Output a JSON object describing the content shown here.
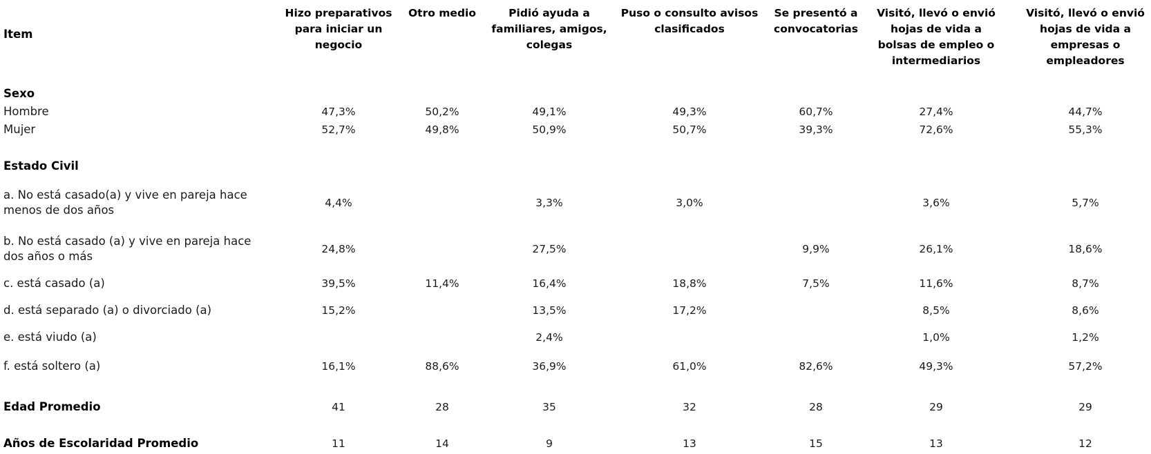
{
  "header": {
    "item_label": "Item",
    "columns": [
      "Hizo preparativos para iniciar un negocio",
      "Otro medio",
      "Pidió ayuda a familiares, amigos, colegas",
      "Puso o consulto avisos clasificados",
      "Se presentó a convocatorias",
      "Visitó, llevó o envió hojas de vida a bolsas de empleo o intermediarios",
      "Visitó, llevó o envió hojas de vida a empresas o empleadores"
    ]
  },
  "rows": [
    {
      "label": "Sexo",
      "bold": true,
      "values": [
        "",
        "",
        "",
        "",
        "",
        "",
        ""
      ]
    },
    {
      "label": "Hombre",
      "bold": false,
      "values": [
        "47,3%",
        "50,2%",
        "49,1%",
        "49,3%",
        "60,7%",
        "27,4%",
        "44,7%"
      ]
    },
    {
      "label": "Mujer",
      "bold": false,
      "values": [
        "52,7%",
        "49,8%",
        "50,9%",
        "50,7%",
        "39,3%",
        "72,6%",
        "55,3%"
      ]
    },
    {
      "label": "Estado Civil",
      "bold": true,
      "values": [
        "",
        "",
        "",
        "",
        "",
        "",
        ""
      ]
    },
    {
      "label": "a. No está casado(a) y vive en pareja hace menos de dos años",
      "bold": false,
      "values": [
        "4,4%",
        "",
        "3,3%",
        "3,0%",
        "",
        "3,6%",
        "5,7%"
      ]
    },
    {
      "label": "b. No está casado (a) y vive en pareja hace dos años o más",
      "bold": false,
      "values": [
        "24,8%",
        "",
        "27,5%",
        "",
        "9,9%",
        "26,1%",
        "18,6%"
      ]
    },
    {
      "label": "c. está casado (a)",
      "bold": false,
      "values": [
        "39,5%",
        "11,4%",
        "16,4%",
        "18,8%",
        "7,5%",
        "11,6%",
        "8,7%"
      ]
    },
    {
      "label": "d. está separado (a) o divorciado (a)",
      "bold": false,
      "values": [
        "15,2%",
        "",
        "13,5%",
        "17,2%",
        "",
        "8,5%",
        "8,6%"
      ]
    },
    {
      "label": "e. está viudo (a)",
      "bold": false,
      "values": [
        "",
        "",
        "2,4%",
        "",
        "",
        "1,0%",
        "1,2%"
      ]
    },
    {
      "label": "f. está soltero (a)",
      "bold": false,
      "values": [
        "16,1%",
        "88,6%",
        "36,9%",
        "61,0%",
        "82,6%",
        "49,3%",
        "57,2%"
      ]
    },
    {
      "label": "Edad Promedio",
      "bold": true,
      "values": [
        "41",
        "28",
        "35",
        "32",
        "28",
        "29",
        "29"
      ]
    },
    {
      "label": "Años de Escolaridad Promedio",
      "bold": true,
      "values": [
        "11",
        "14",
        "9",
        "13",
        "15",
        "13",
        "12"
      ]
    }
  ]
}
